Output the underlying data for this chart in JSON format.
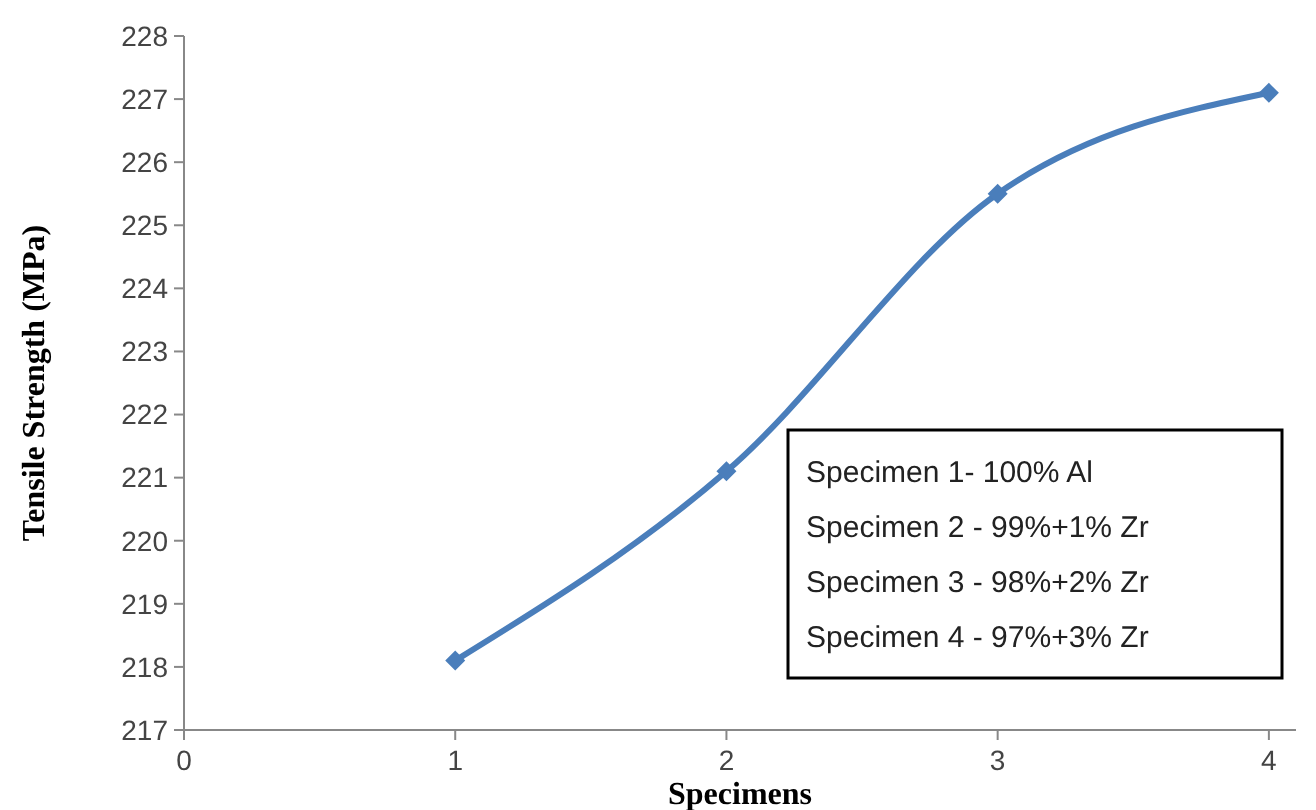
{
  "chart_data": {
    "type": "line",
    "xlabel": "Specimens",
    "ylabel": "Tensile Strength (MPa)",
    "x": [
      1,
      2,
      3,
      4
    ],
    "series": [
      {
        "color": "#4a7ebb",
        "values": [
          218.1,
          221.1,
          225.5,
          227.1
        ]
      }
    ],
    "xlim": [
      0,
      4.1
    ],
    "xticks": [
      0,
      1,
      2,
      3,
      4
    ],
    "ylim": [
      217,
      228
    ],
    "yticks": [
      217,
      218,
      219,
      220,
      221,
      222,
      223,
      224,
      225,
      226,
      227,
      228
    ],
    "marker": "diamond",
    "line_style": "solid",
    "grid": false,
    "annotations": [
      "Specimen 1- 100% Al",
      "Specimen 2 - 99%+1% Zr",
      "Specimen 3 - 98%+2% Zr",
      "Specimen 4 - 97%+3% Zr"
    ]
  }
}
